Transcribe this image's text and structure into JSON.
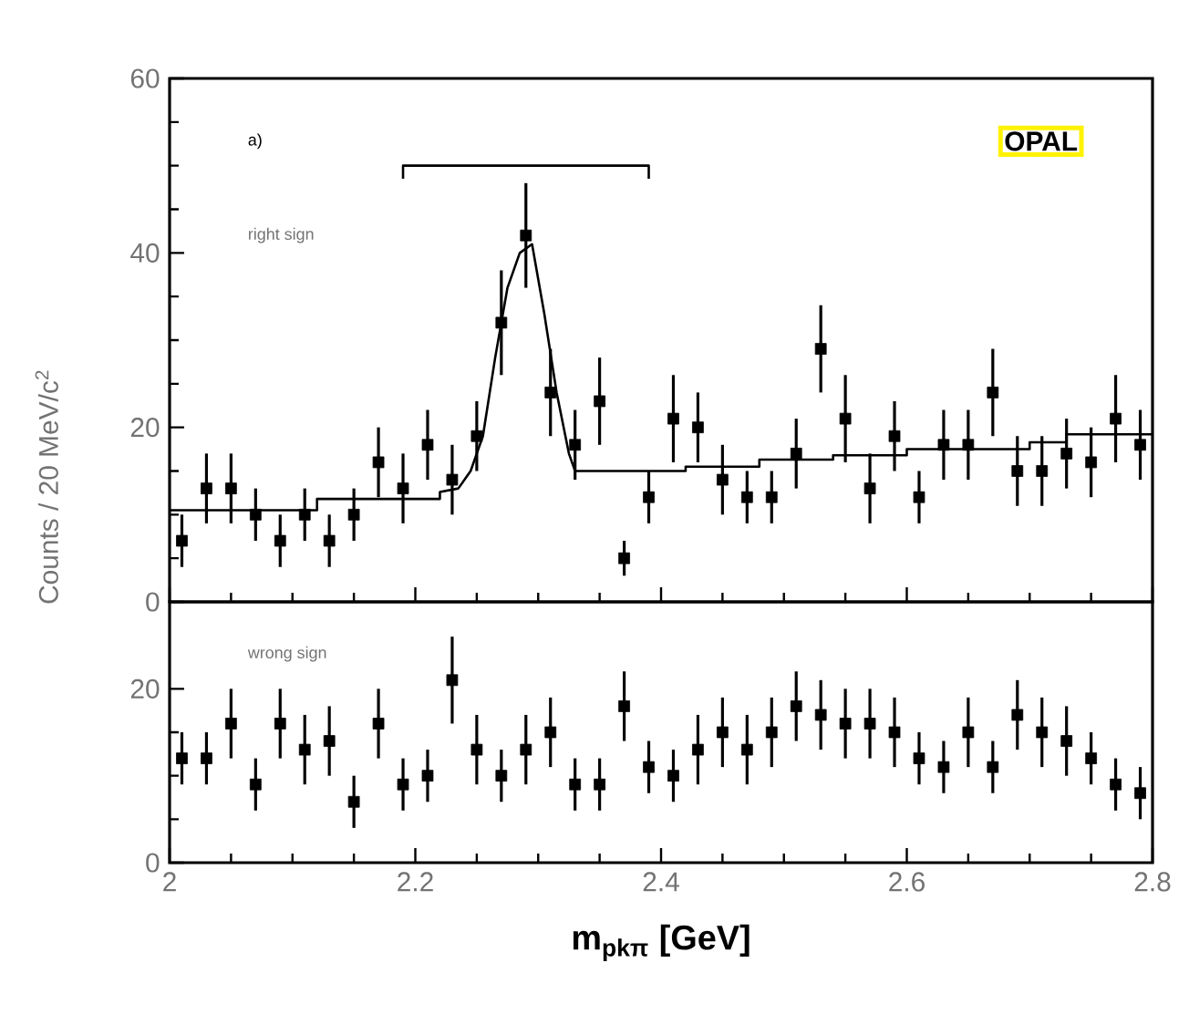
{
  "chart_data": [
    {
      "type": "scatter",
      "ylabel": "Counts / 20 MeV/c$^{2}$",
      "annotations": [
        "a)",
        "right sign",
        "OPAL"
      ],
      "xlim": [
        2,
        2.8
      ],
      "ylim": [
        0,
        60
      ],
      "xticks": [
        2,
        2.2,
        2.4,
        2.6,
        2.8
      ],
      "yticks": [
        0,
        20,
        40,
        60
      ],
      "tick_labels": "y",
      "marker": "square",
      "grid": false,
      "series": [
        {
          "color": "#000000",
          "x": [
            2.01,
            2.03,
            2.05,
            2.07,
            2.09,
            2.11,
            2.13,
            2.15,
            2.17,
            2.19,
            2.21,
            2.23,
            2.25,
            2.27,
            2.29,
            2.31,
            2.33,
            2.35,
            2.37,
            2.39,
            2.41,
            2.43,
            2.45,
            2.47,
            2.49,
            2.51,
            2.53,
            2.55,
            2.57,
            2.59,
            2.61,
            2.63,
            2.65,
            2.67,
            2.69,
            2.71,
            2.73,
            2.75,
            2.77,
            2.79
          ],
          "values": [
            7,
            13,
            13,
            10,
            7,
            10,
            7,
            10,
            16,
            13,
            18,
            14,
            19,
            32,
            42,
            24,
            18,
            23,
            5,
            12,
            21,
            20,
            14,
            12,
            12,
            17,
            29,
            21,
            13,
            19,
            12,
            18,
            18,
            24,
            15,
            15,
            17,
            16,
            21,
            18
          ],
          "errors": [
            3,
            4,
            4,
            3,
            3,
            3,
            3,
            3,
            4,
            4,
            4,
            4,
            4,
            6,
            6,
            5,
            4,
            5,
            2,
            3,
            5,
            4,
            4,
            3,
            3,
            4,
            5,
            5,
            4,
            4,
            3,
            4,
            4,
            5,
            4,
            4,
            4,
            4,
            5,
            4
          ]
        },
        {
          "type": "line",
          "color": "#000000",
          "marker": "none",
          "x": [
            2.0,
            2.12,
            2.12,
            2.22,
            2.22,
            2.235,
            2.245,
            2.255,
            2.265,
            2.275,
            2.285,
            2.295,
            2.305,
            2.315,
            2.325,
            2.33,
            2.42,
            2.42,
            2.48,
            2.48,
            2.54,
            2.54,
            2.6,
            2.6,
            2.7,
            2.7,
            2.73,
            2.73,
            2.8
          ],
          "values": [
            10.5,
            10.5,
            11.8,
            11.8,
            12.6,
            13,
            15,
            19,
            28,
            36,
            40,
            41,
            33,
            24,
            17,
            15,
            15,
            15.5,
            15.5,
            16.3,
            16.3,
            16.8,
            16.8,
            17.5,
            17.5,
            18.3,
            18.3,
            19.2,
            19.2
          ]
        },
        {
          "type": "line",
          "color": "#000000",
          "marker": "none",
          "x": [
            2.19,
            2.19,
            2.39,
            2.39
          ],
          "values": [
            48.5,
            50,
            50,
            48.5
          ]
        }
      ]
    },
    {
      "type": "scatter",
      "xlabel": "m$_{pkπ}$   [GeV]",
      "annotations": [
        "wrong sign"
      ],
      "xlim": [
        2,
        2.8
      ],
      "ylim": [
        0,
        30
      ],
      "xticks": [
        2,
        2.2,
        2.4,
        2.6,
        2.8
      ],
      "yticks": [
        0,
        20
      ],
      "marker": "square",
      "grid": false,
      "series": [
        {
          "color": "#000000",
          "x": [
            2.01,
            2.03,
            2.05,
            2.07,
            2.09,
            2.11,
            2.13,
            2.15,
            2.17,
            2.19,
            2.21,
            2.23,
            2.25,
            2.27,
            2.29,
            2.31,
            2.33,
            2.35,
            2.37,
            2.39,
            2.41,
            2.43,
            2.45,
            2.47,
            2.49,
            2.51,
            2.53,
            2.55,
            2.57,
            2.59,
            2.61,
            2.63,
            2.65,
            2.67,
            2.69,
            2.71,
            2.73,
            2.75,
            2.77,
            2.79
          ],
          "values": [
            12,
            12,
            16,
            9,
            16,
            13,
            14,
            7,
            16,
            9,
            10,
            21,
            13,
            10,
            13,
            15,
            9,
            9,
            18,
            11,
            10,
            13,
            15,
            13,
            15,
            18,
            17,
            16,
            16,
            15,
            12,
            11,
            15,
            11,
            17,
            15,
            14,
            12,
            9,
            8
          ],
          "errors": [
            3,
            3,
            4,
            3,
            4,
            4,
            4,
            3,
            4,
            3,
            3,
            5,
            4,
            3,
            4,
            4,
            3,
            3,
            4,
            3,
            3,
            4,
            4,
            4,
            4,
            4,
            4,
            4,
            4,
            4,
            3,
            3,
            4,
            3,
            4,
            4,
            4,
            3,
            3,
            3
          ]
        }
      ]
    }
  ]
}
